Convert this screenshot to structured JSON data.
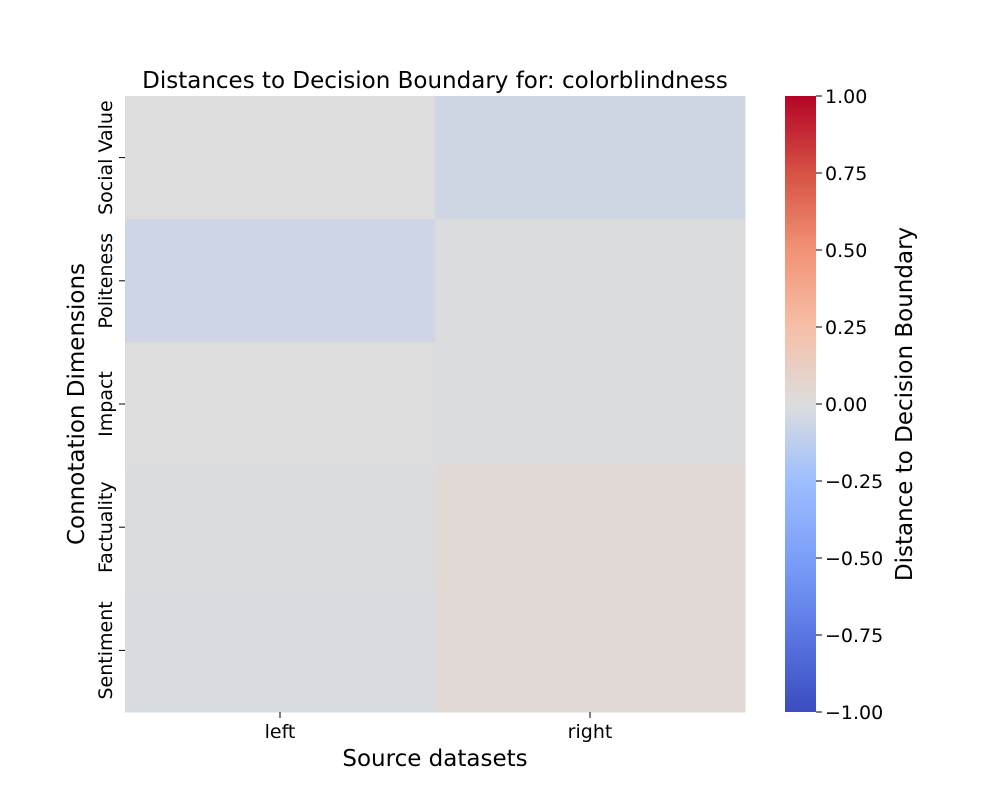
{
  "chart_data": {
    "type": "heatmap",
    "title": "Distances to Decision Boundary for: colorblindness",
    "xlabel": "Source datasets",
    "ylabel": "Connotation Dimensions",
    "x_categories": [
      "left",
      "right"
    ],
    "y_categories": [
      "Social Value",
      "Politeness",
      "Impact",
      "Factuality",
      "Sentiment"
    ],
    "values": [
      [
        0.0,
        -0.05
      ],
      [
        -0.06,
        -0.01
      ],
      [
        0.0,
        -0.01
      ],
      [
        -0.01,
        0.03
      ],
      [
        -0.02,
        0.03
      ]
    ],
    "colorbar": {
      "label": "Distance to Decision Boundary",
      "vmin": -1.0,
      "vmax": 1.0,
      "colormap": "coolwarm",
      "ticks": [
        "1.00",
        "0.75",
        "0.50",
        "0.25",
        "0.00",
        "−0.25",
        "−0.50",
        "−0.75",
        "−1.00"
      ]
    }
  }
}
